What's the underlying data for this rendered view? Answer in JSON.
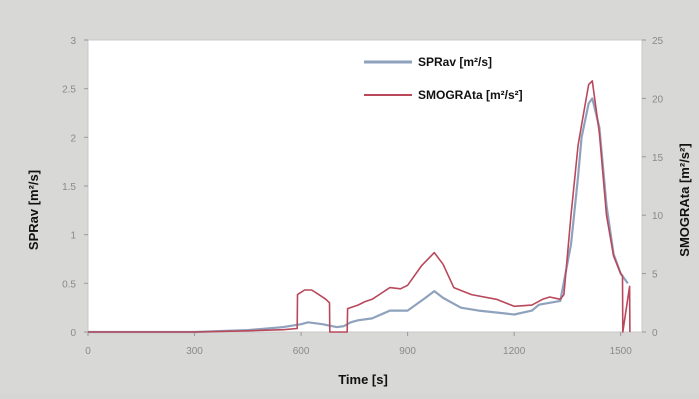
{
  "chart_data": {
    "type": "line",
    "xlabel": "Time [s]",
    "ylabel": "SPRav [m²/s]",
    "y2label": "SMOGRAta [m²/s²]",
    "xlim": [
      0,
      1560
    ],
    "ylim": [
      0,
      3
    ],
    "y2lim": [
      0,
      25
    ],
    "xticks": [
      0,
      300,
      600,
      900,
      1200,
      1500
    ],
    "yticks": [
      0,
      0.5,
      1,
      1.5,
      2,
      2.5,
      3
    ],
    "yticklabels": [
      "0",
      "0.5",
      "1",
      "1.5",
      "2",
      "2.5",
      "3"
    ],
    "y2ticks": [
      0,
      5,
      10,
      15,
      20,
      25
    ],
    "legend_position": "top-right",
    "grid": false,
    "series": [
      {
        "name": "SPRav [m²/s]",
        "axis": "left",
        "color": "#8fa2bd",
        "x": [
          0,
          300,
          450,
          550,
          600,
          620,
          660,
          700,
          720,
          740,
          760,
          800,
          850,
          900,
          950,
          975,
          1000,
          1050,
          1100,
          1150,
          1200,
          1250,
          1270,
          1300,
          1330,
          1360,
          1380,
          1390,
          1410,
          1420,
          1440,
          1460,
          1480,
          1500,
          1520
        ],
        "values": [
          0,
          0,
          0.02,
          0.05,
          0.08,
          0.1,
          0.08,
          0.05,
          0.06,
          0.1,
          0.12,
          0.14,
          0.22,
          0.22,
          0.35,
          0.42,
          0.35,
          0.25,
          0.22,
          0.2,
          0.18,
          0.22,
          0.28,
          0.3,
          0.32,
          0.9,
          1.6,
          2.0,
          2.35,
          2.4,
          2.1,
          1.3,
          0.8,
          0.6,
          0.5
        ]
      },
      {
        "name": "SMOGRAta [m²/s²]",
        "axis": "right",
        "color": "#b8485a",
        "x": [
          0,
          300,
          450,
          550,
          589,
          590,
          610,
          630,
          650,
          670,
          680,
          681,
          730,
          731,
          760,
          780,
          800,
          850,
          880,
          900,
          940,
          975,
          1000,
          1030,
          1080,
          1150,
          1200,
          1250,
          1280,
          1300,
          1330,
          1340,
          1360,
          1380,
          1400,
          1410,
          1420,
          1440,
          1460,
          1480,
          1500,
          1505,
          1506,
          1525,
          1526
        ],
        "values": [
          0,
          0,
          0.1,
          0.2,
          0.3,
          3.2,
          3.6,
          3.6,
          3.2,
          2.8,
          2.5,
          0,
          0,
          2.0,
          2.3,
          2.6,
          2.8,
          3.8,
          3.7,
          4.0,
          5.7,
          6.8,
          5.8,
          3.8,
          3.2,
          2.8,
          2.2,
          2.3,
          2.8,
          3.0,
          2.8,
          3.2,
          10.0,
          16.0,
          19.5,
          21.2,
          21.5,
          17.0,
          10.0,
          6.5,
          5.0,
          4.8,
          0,
          3.9,
          0
        ]
      }
    ]
  }
}
